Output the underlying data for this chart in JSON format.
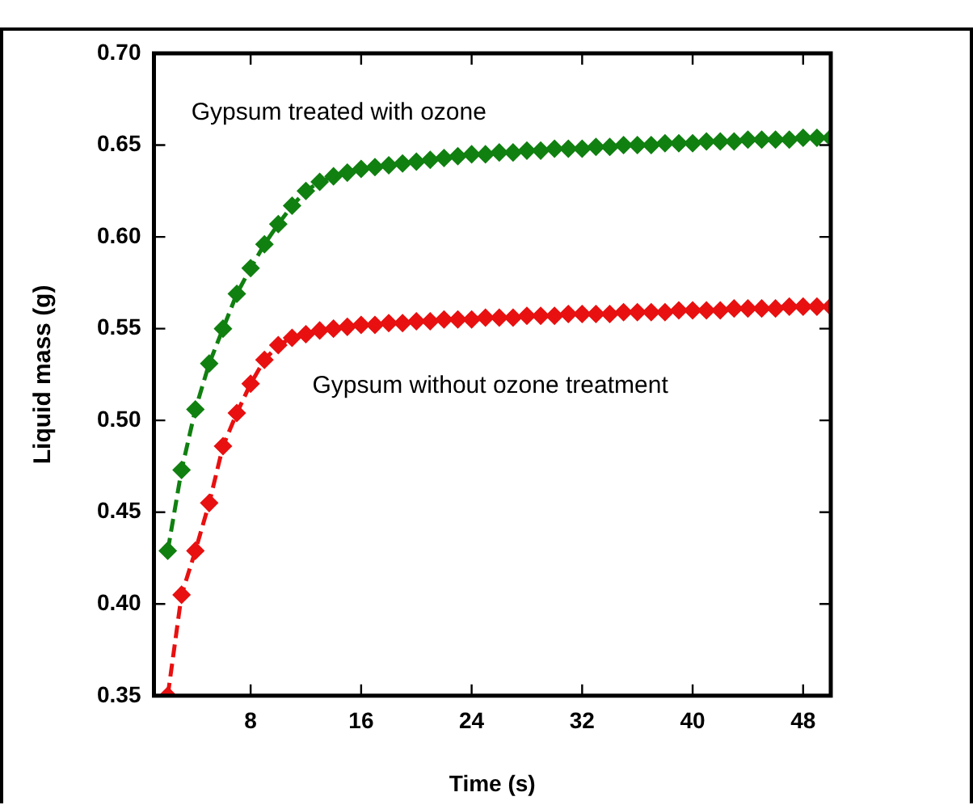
{
  "chart_data": {
    "type": "line",
    "xlabel": "Time (s)",
    "ylabel": "Liquid mass (g)",
    "x": [
      2,
      3,
      4,
      5,
      6,
      7,
      8,
      9,
      10,
      11,
      12,
      13,
      14,
      15,
      16,
      17,
      18,
      19,
      20,
      21,
      22,
      23,
      24,
      25,
      26,
      27,
      28,
      29,
      30,
      31,
      32,
      33,
      34,
      35,
      36,
      37,
      38,
      39,
      40,
      41,
      42,
      43,
      44,
      45,
      46,
      47,
      48,
      49,
      50
    ],
    "series": [
      {
        "name": "Gypsum treated with ozone",
        "color": "#108010",
        "values": [
          0.429,
          0.473,
          0.506,
          0.531,
          0.55,
          0.569,
          0.583,
          0.596,
          0.607,
          0.617,
          0.625,
          0.63,
          0.633,
          0.635,
          0.637,
          0.638,
          0.639,
          0.64,
          0.641,
          0.642,
          0.643,
          0.644,
          0.645,
          0.645,
          0.646,
          0.646,
          0.647,
          0.647,
          0.648,
          0.648,
          0.648,
          0.649,
          0.649,
          0.65,
          0.65,
          0.65,
          0.651,
          0.651,
          0.651,
          0.652,
          0.652,
          0.652,
          0.653,
          0.653,
          0.653,
          0.653,
          0.654,
          0.654,
          0.654
        ]
      },
      {
        "name": "Gypsum without ozone treatment",
        "color": "#e81010",
        "values": [
          0.35,
          0.405,
          0.429,
          0.455,
          0.486,
          0.504,
          0.52,
          0.533,
          0.541,
          0.545,
          0.547,
          0.549,
          0.55,
          0.551,
          0.552,
          0.552,
          0.553,
          0.553,
          0.554,
          0.554,
          0.555,
          0.555,
          0.555,
          0.556,
          0.556,
          0.556,
          0.557,
          0.557,
          0.557,
          0.558,
          0.558,
          0.558,
          0.558,
          0.559,
          0.559,
          0.559,
          0.559,
          0.56,
          0.56,
          0.56,
          0.56,
          0.561,
          0.561,
          0.561,
          0.561,
          0.562,
          0.562,
          0.562,
          0.562
        ]
      }
    ],
    "xlim": [
      1,
      50
    ],
    "xticks": [
      8,
      16,
      24,
      32,
      40,
      48
    ],
    "ylim": [
      0.35,
      0.7
    ],
    "yticks": [
      {
        "value": 0.35,
        "label": "0.35"
      },
      {
        "value": 0.4,
        "label": "0.40"
      },
      {
        "value": 0.45,
        "label": "0.45"
      },
      {
        "value": 0.5,
        "label": "0.50"
      },
      {
        "value": 0.55,
        "label": "0.55"
      },
      {
        "value": 0.6,
        "label": "0.60"
      },
      {
        "value": 0.65,
        "label": "0.65"
      },
      {
        "value": 0.7,
        "label": "0.70"
      }
    ],
    "grid": false,
    "legend": false,
    "marker": "diamond",
    "line_style": "dashed"
  }
}
